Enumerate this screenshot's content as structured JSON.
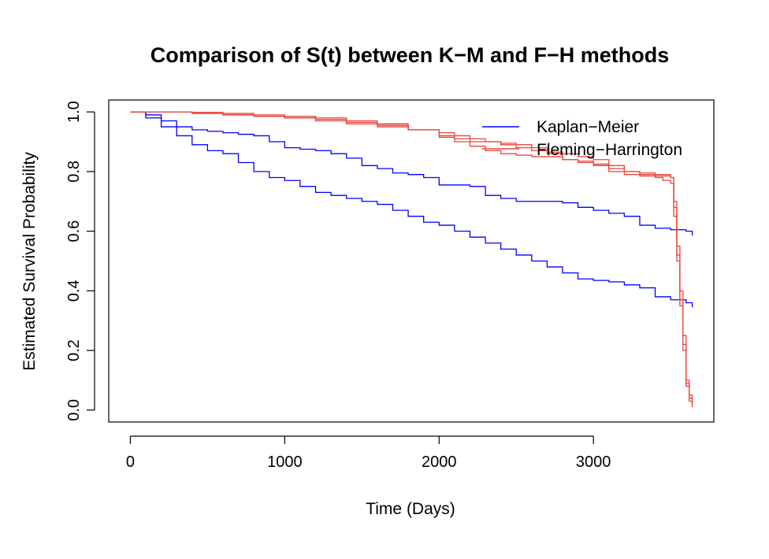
{
  "chart_data": {
    "type": "line",
    "title": "Comparison of S(t) between K−M and F−H methods",
    "xlabel": "Time (Days)",
    "ylabel": "Estimated Survival Probability",
    "xlim": [
      -140,
      3780
    ],
    "ylim": [
      -0.04,
      1.04
    ],
    "x_ticks": [
      0,
      1000,
      2000,
      3000
    ],
    "x_tick_labels": [
      "0",
      "1000",
      "2000",
      "3000"
    ],
    "y_ticks": [
      0.0,
      0.2,
      0.4,
      0.6,
      0.8,
      1.0
    ],
    "y_tick_labels": [
      "0.0",
      "0.2",
      "0.4",
      "0.6",
      "0.8",
      "1.0"
    ],
    "grid": false,
    "legend_position": "top-right",
    "legend": [
      {
        "label": "Kaplan−Meier",
        "color": "#0000ff"
      },
      {
        "label": "Fleming−Harrington",
        "color": "#e8463c"
      }
    ],
    "series": [
      {
        "color": "#0000ff",
        "x": [
          0,
          100,
          200,
          300,
          400,
          500,
          600,
          700,
          800,
          900,
          1000,
          1100,
          1200,
          1300,
          1400,
          1500,
          1600,
          1700,
          1800,
          1900,
          2000,
          2100,
          2200,
          2300,
          2400,
          2500,
          2600,
          2700,
          2800,
          2900,
          3000,
          3100,
          3200,
          3300,
          3400,
          3500,
          3600,
          3640
        ],
        "y": [
          1.0,
          0.99,
          0.97,
          0.95,
          0.94,
          0.935,
          0.93,
          0.925,
          0.92,
          0.9,
          0.88,
          0.875,
          0.87,
          0.86,
          0.845,
          0.82,
          0.81,
          0.795,
          0.79,
          0.78,
          0.755,
          0.755,
          0.75,
          0.72,
          0.71,
          0.7,
          0.7,
          0.7,
          0.695,
          0.68,
          0.67,
          0.66,
          0.65,
          0.62,
          0.61,
          0.605,
          0.6,
          0.585
        ]
      },
      {
        "color": "#0000ff",
        "x": [
          0,
          100,
          200,
          300,
          400,
          500,
          600,
          700,
          800,
          900,
          1000,
          1100,
          1200,
          1300,
          1400,
          1500,
          1600,
          1700,
          1800,
          1900,
          2000,
          2100,
          2200,
          2300,
          2400,
          2500,
          2600,
          2700,
          2800,
          2900,
          3000,
          3100,
          3200,
          3300,
          3400,
          3500,
          3600,
          3640
        ],
        "y": [
          1.0,
          0.98,
          0.95,
          0.92,
          0.89,
          0.87,
          0.86,
          0.83,
          0.8,
          0.78,
          0.77,
          0.75,
          0.73,
          0.72,
          0.71,
          0.7,
          0.69,
          0.67,
          0.65,
          0.63,
          0.62,
          0.6,
          0.58,
          0.56,
          0.54,
          0.52,
          0.5,
          0.48,
          0.46,
          0.44,
          0.435,
          0.43,
          0.42,
          0.41,
          0.38,
          0.37,
          0.36,
          0.345
        ]
      },
      {
        "color": "#e8463c",
        "x": [
          0,
          200,
          400,
          600,
          800,
          1000,
          1200,
          1400,
          1600,
          1800,
          2000,
          2100,
          2200,
          2300,
          2400,
          2500,
          2600,
          2700,
          2800,
          2900,
          3000,
          3100,
          3200,
          3300,
          3400,
          3450,
          3500,
          3520,
          3540,
          3560,
          3580,
          3600,
          3620,
          3640
        ],
        "y": [
          1.0,
          1.0,
          0.998,
          0.995,
          0.99,
          0.985,
          0.98,
          0.97,
          0.96,
          0.94,
          0.92,
          0.91,
          0.9,
          0.9,
          0.895,
          0.89,
          0.88,
          0.86,
          0.84,
          0.83,
          0.82,
          0.8,
          0.79,
          0.785,
          0.78,
          0.77,
          0.76,
          0.65,
          0.5,
          0.35,
          0.2,
          0.08,
          0.03,
          0.01
        ]
      },
      {
        "color": "#e8463c",
        "x": [
          0,
          200,
          400,
          600,
          800,
          1000,
          1200,
          1400,
          1600,
          1800,
          2000,
          2100,
          2200,
          2300,
          2400,
          2500,
          2600,
          2700,
          2800,
          2900,
          3000,
          3100,
          3200,
          3300,
          3400,
          3450,
          3500,
          3520,
          3540,
          3560,
          3580,
          3600,
          3620,
          3640
        ],
        "y": [
          1.0,
          1.0,
          0.998,
          0.99,
          0.985,
          0.98,
          0.97,
          0.96,
          0.95,
          0.94,
          0.915,
          0.9,
          0.885,
          0.87,
          0.86,
          0.855,
          0.85,
          0.85,
          0.84,
          0.835,
          0.825,
          0.81,
          0.8,
          0.79,
          0.785,
          0.785,
          0.78,
          0.7,
          0.55,
          0.4,
          0.25,
          0.1,
          0.04,
          0.02
        ]
      },
      {
        "color": "#e8463c",
        "x": [
          0,
          200,
          400,
          600,
          800,
          1000,
          1200,
          1400,
          1600,
          1800,
          2000,
          2100,
          2200,
          2300,
          2400,
          2500,
          2600,
          2700,
          2800,
          2900,
          3000,
          3100,
          3200,
          3300,
          3400,
          3450,
          3500,
          3520,
          3540,
          3560,
          3580,
          3600,
          3620,
          3640
        ],
        "y": [
          1.0,
          1.0,
          0.995,
          0.99,
          0.985,
          0.98,
          0.975,
          0.965,
          0.955,
          0.94,
          0.93,
          0.92,
          0.91,
          0.9,
          0.89,
          0.88,
          0.87,
          0.865,
          0.86,
          0.85,
          0.84,
          0.82,
          0.8,
          0.795,
          0.79,
          0.79,
          0.78,
          0.68,
          0.52,
          0.37,
          0.22,
          0.09,
          0.05,
          0.02
        ]
      }
    ]
  }
}
